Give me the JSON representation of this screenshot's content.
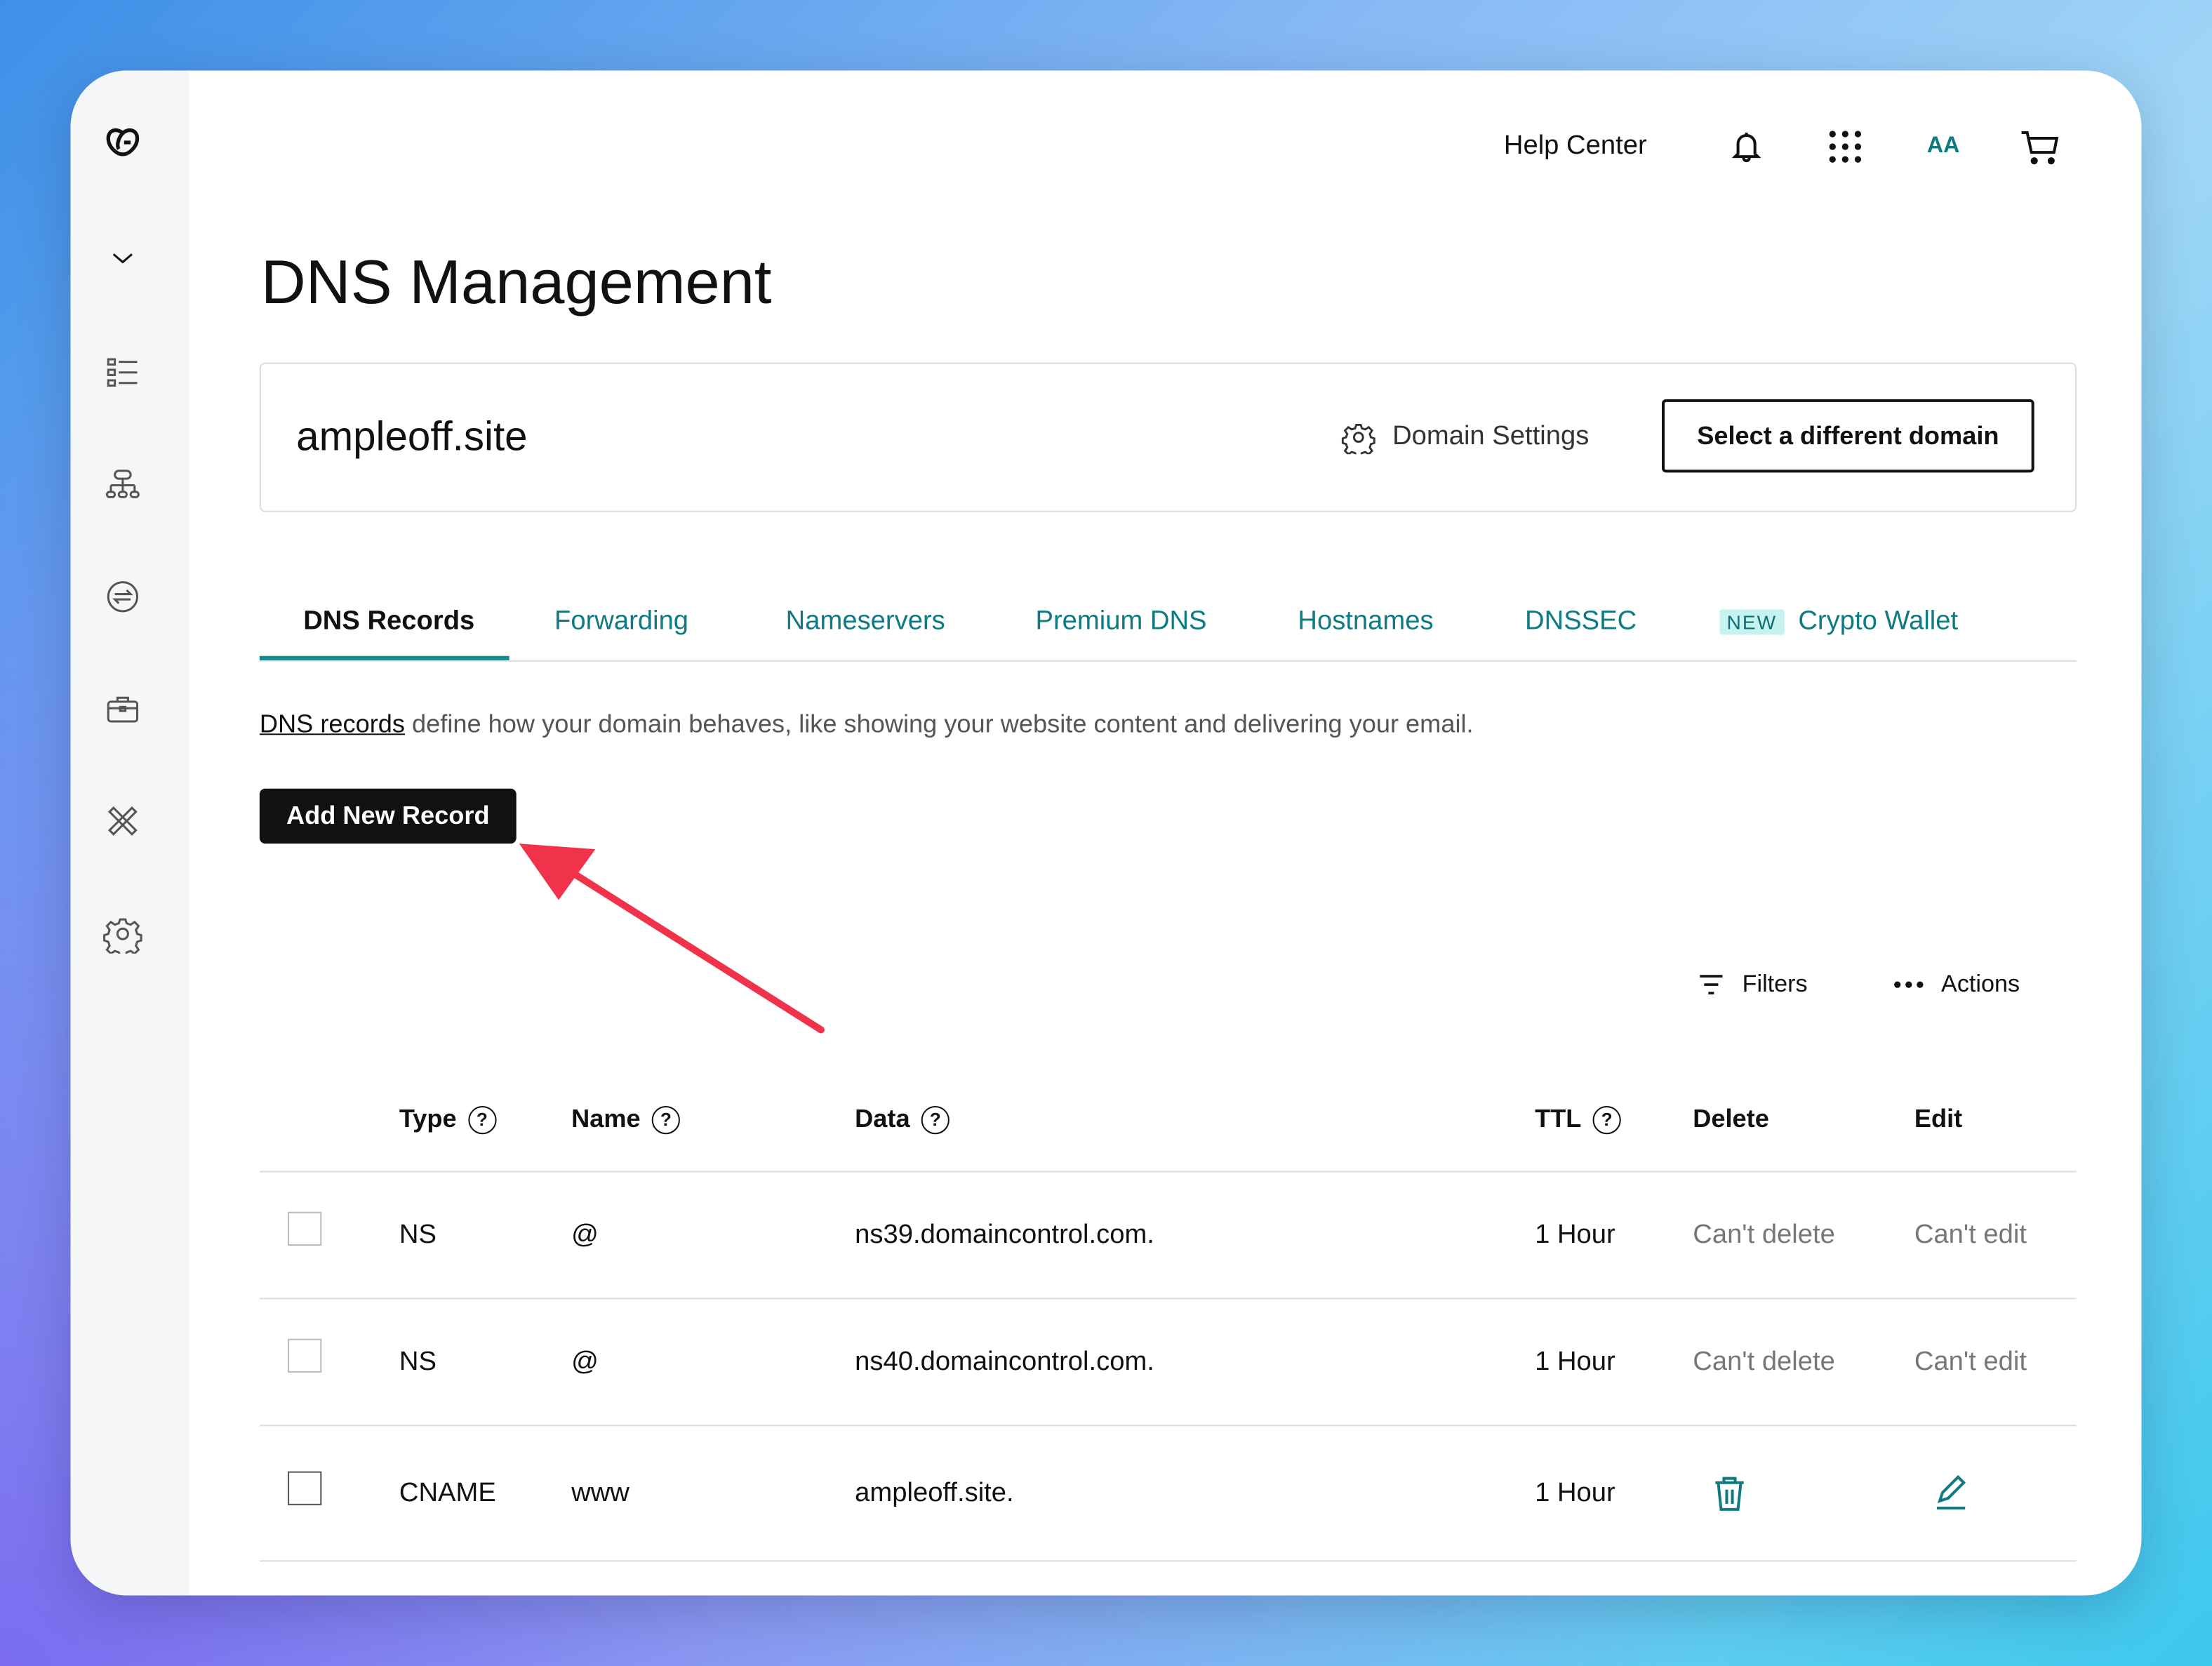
{
  "header": {
    "help": "Help Center",
    "avatar": "AA",
    "icons": [
      "bell-icon",
      "apps-grid-icon",
      "cart-icon"
    ]
  },
  "page": {
    "title": "DNS Management"
  },
  "domain": {
    "name": "ampleoff.site",
    "settings": "Domain Settings",
    "select": "Select a different domain"
  },
  "tabs": [
    {
      "label": "DNS Records"
    },
    {
      "label": "Forwarding"
    },
    {
      "label": "Nameservers"
    },
    {
      "label": "Premium DNS"
    },
    {
      "label": "Hostnames"
    },
    {
      "label": "DNSSEC"
    },
    {
      "label": "Crypto Wallet",
      "badge": "NEW"
    }
  ],
  "description": {
    "link": "DNS records",
    "text": " define how your domain behaves, like showing your website content and delivering your email."
  },
  "add_button": "Add New Record",
  "toolbar": {
    "filters": "Filters",
    "actions": "Actions"
  },
  "table": {
    "headers": {
      "type": "Type",
      "name": "Name",
      "data": "Data",
      "ttl": "TTL",
      "delete": "Delete",
      "edit": "Edit"
    },
    "help_glyph": "?",
    "rows": [
      {
        "type": "NS",
        "name": "@",
        "data": "ns39.domaincontrol.com.",
        "ttl": "1 Hour",
        "delete": "Can't delete",
        "edit": "Can't edit"
      },
      {
        "type": "NS",
        "name": "@",
        "data": "ns40.domaincontrol.com.",
        "ttl": "1 Hour",
        "delete": "Can't delete",
        "edit": "Can't edit"
      },
      {
        "type": "CNAME",
        "name": "www",
        "data": "ampleoff.site.",
        "ttl": "1 Hour",
        "delete": "",
        "edit": ""
      }
    ]
  },
  "colors": {
    "accent": "#0f7a80",
    "annotation_arrow": "#f0334a"
  }
}
